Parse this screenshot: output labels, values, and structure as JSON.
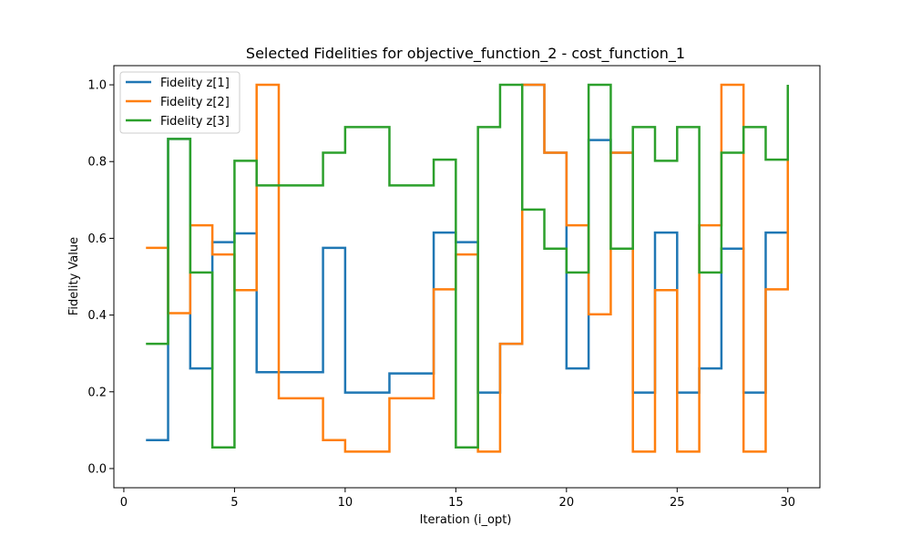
{
  "chart_data": {
    "type": "line",
    "step": "post",
    "title": "Selected Fidelities for objective_function_2 - cost_function_1",
    "xlabel": "Iteration (i_opt)",
    "ylabel": "Fidelity Value",
    "xlim": [
      -0.45,
      31.45
    ],
    "ylim": [
      -0.05,
      1.05
    ],
    "xticks": [
      0,
      5,
      10,
      15,
      20,
      25,
      30
    ],
    "yticks": [
      0.0,
      0.2,
      0.4,
      0.6,
      0.8,
      1.0
    ],
    "xtick_labels": [
      "0",
      "5",
      "10",
      "15",
      "20",
      "25",
      "30"
    ],
    "ytick_labels": [
      "0.0",
      "0.2",
      "0.4",
      "0.6",
      "0.8",
      "1.0"
    ],
    "grid": false,
    "legend_position": "upper-left",
    "x": [
      1,
      2,
      3,
      4,
      5,
      6,
      7,
      8,
      9,
      10,
      11,
      12,
      13,
      14,
      15,
      16,
      17,
      18,
      19,
      20,
      21,
      22,
      23,
      24,
      25,
      26,
      27,
      28,
      29,
      30
    ],
    "series": [
      {
        "name": "Fidelity z[1]",
        "color": "#1f77b4",
        "values": [
          0.074,
          0.859,
          0.261,
          0.59,
          0.613,
          0.251,
          0.251,
          0.251,
          0.575,
          0.198,
          0.198,
          0.248,
          0.248,
          0.615,
          0.59,
          0.198,
          0.325,
          1.0,
          0.823,
          0.261,
          0.856,
          0.823,
          0.198,
          0.615,
          0.198,
          0.261,
          0.573,
          0.198,
          0.615,
          0.615
        ]
      },
      {
        "name": "Fidelity z[2]",
        "color": "#ff7f0e",
        "values": [
          0.575,
          0.405,
          0.634,
          0.558,
          0.465,
          1.0,
          0.183,
          0.183,
          0.074,
          0.044,
          0.044,
          0.183,
          0.183,
          0.467,
          0.558,
          0.044,
          0.325,
          1.0,
          0.823,
          0.634,
          0.402,
          0.823,
          0.044,
          0.465,
          0.044,
          0.634,
          1.0,
          0.044,
          0.467,
          0.805
        ]
      },
      {
        "name": "Fidelity z[3]",
        "color": "#2ca02c",
        "values": [
          0.325,
          0.859,
          0.511,
          0.055,
          0.802,
          0.738,
          0.738,
          0.738,
          0.823,
          0.89,
          0.89,
          0.738,
          0.738,
          0.805,
          0.055,
          0.89,
          1.0,
          0.675,
          0.573,
          0.511,
          1.0,
          0.573,
          0.89,
          0.802,
          0.89,
          0.511,
          0.823,
          0.89,
          0.805,
          1.0
        ]
      }
    ]
  }
}
